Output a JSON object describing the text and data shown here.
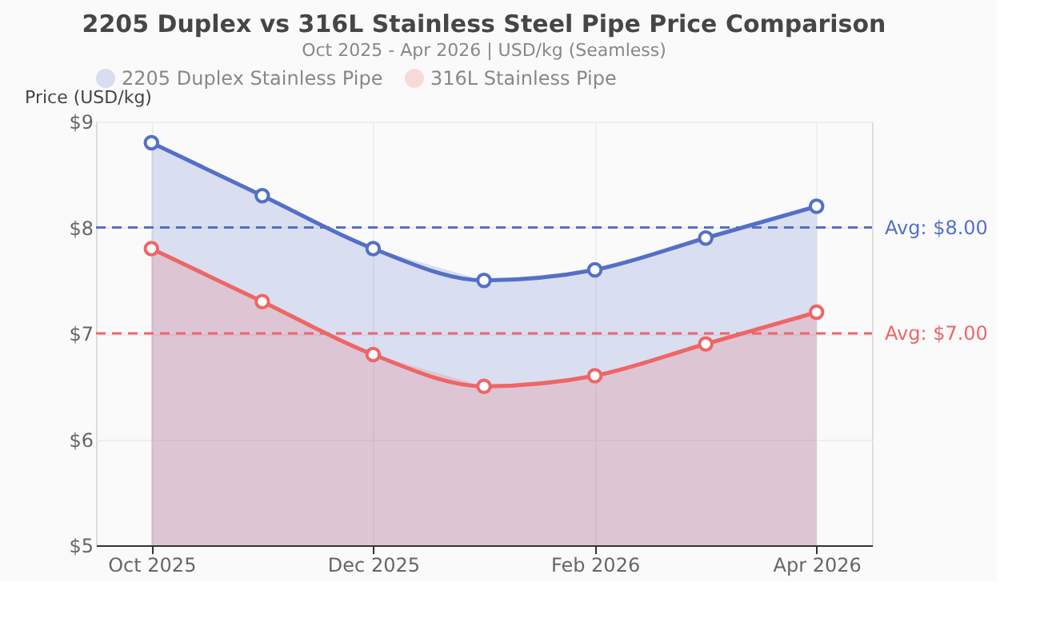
{
  "chart_data": {
    "type": "area",
    "title": "2205 Duplex vs 316L Stainless Steel Pipe Price Comparison",
    "subtitle": "Oct 2025 - Apr 2026 | USD/kg (Seamless)",
    "ylabel": "Price (USD/kg)",
    "categories": [
      "Oct 2025",
      null,
      "Dec 2025",
      null,
      "Feb 2026",
      null,
      "Apr 2026"
    ],
    "series": [
      {
        "name": "2205 Duplex Stainless Pipe",
        "color": "#5470c6",
        "values": [
          8.8,
          8.3,
          7.8,
          7.5,
          7.6,
          7.9,
          8.2
        ]
      },
      {
        "name": "316L Stainless Pipe",
        "color": "#ee6666",
        "values": [
          7.8,
          7.3,
          6.8,
          6.5,
          6.6,
          6.9,
          7.2
        ]
      }
    ],
    "ylim": [
      5,
      9
    ],
    "yticks": [
      {
        "value": 5,
        "label": "$5"
      },
      {
        "value": 6,
        "label": "$6"
      },
      {
        "value": 7,
        "label": "$7"
      },
      {
        "value": 8,
        "label": "$8"
      },
      {
        "value": 9,
        "label": "$9"
      }
    ],
    "ref_lines": [
      {
        "axis": "y",
        "value": 8,
        "label": "Avg: $8.00",
        "color": "#5470c6",
        "line_style": "dashed"
      },
      {
        "axis": "y",
        "value": 7,
        "label": "Avg: $7.00",
        "color": "#ee6666",
        "line_style": "dashed"
      }
    ],
    "grid": true,
    "legend": "top",
    "marker": "circle",
    "line_style": "solid"
  }
}
